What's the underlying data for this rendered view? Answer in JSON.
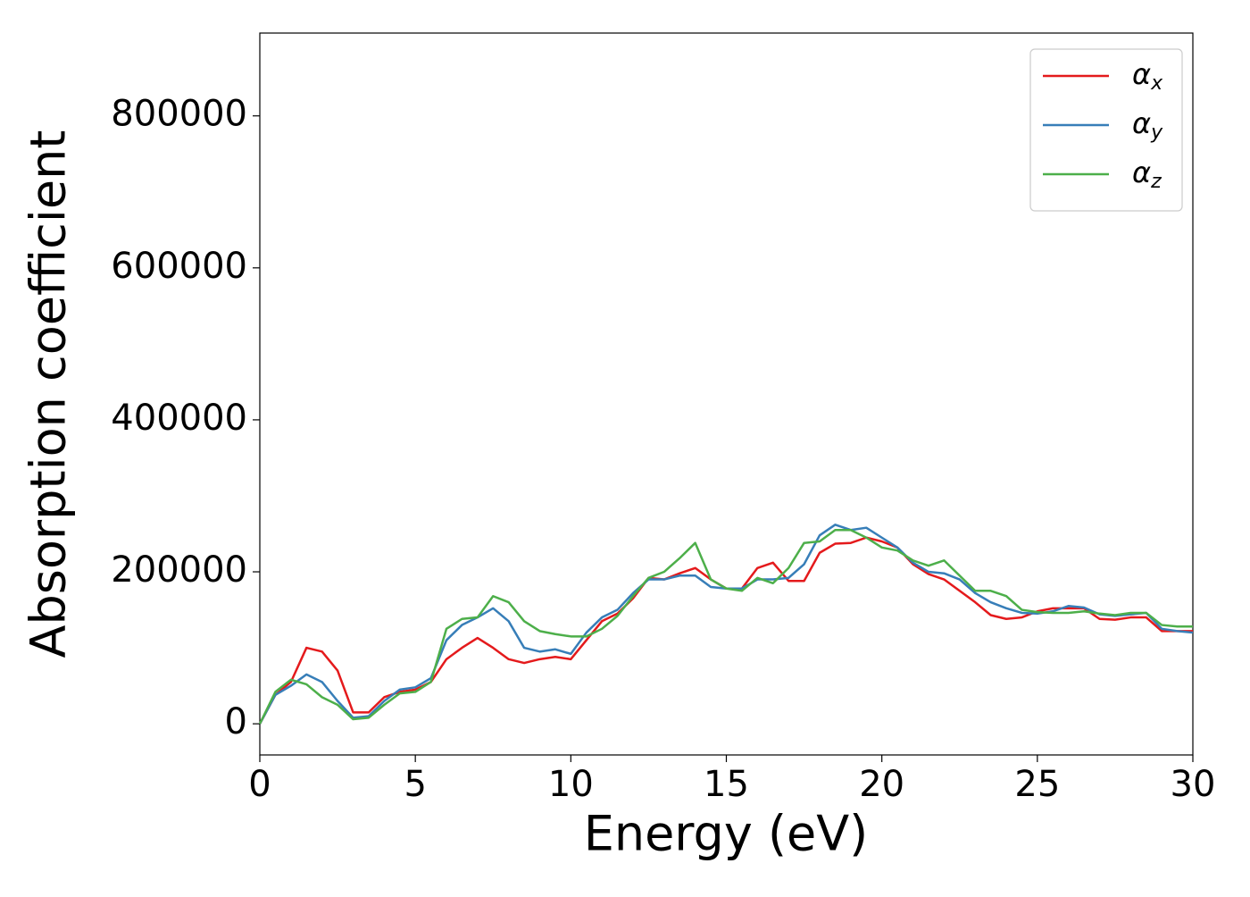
{
  "chart_data": {
    "type": "line",
    "xlabel": "Energy (eV)",
    "ylabel": "Absorption coefficient",
    "x": [
      0,
      0.5,
      1,
      1.5,
      2,
      2.5,
      3,
      3.5,
      4,
      4.5,
      5,
      5.5,
      6,
      6.5,
      7,
      7.5,
      8,
      8.5,
      9,
      9.5,
      10,
      10.5,
      11,
      11.5,
      12,
      12.5,
      13,
      13.5,
      14,
      14.5,
      15,
      15.5,
      16,
      16.5,
      17,
      17.5,
      18,
      18.5,
      19,
      19.5,
      20,
      20.5,
      21,
      21.5,
      22,
      22.5,
      23,
      23.5,
      24,
      24.5,
      25,
      25.5,
      26,
      26.5,
      27,
      27.5,
      28,
      28.5,
      29,
      29.5,
      30
    ],
    "series": [
      {
        "name": "αx",
        "color": "#e41a1c",
        "values": [
          0,
          38000,
          55000,
          100000,
          95000,
          70000,
          15000,
          15000,
          35000,
          42000,
          45000,
          55000,
          85000,
          100000,
          113000,
          100000,
          85000,
          80000,
          85000,
          88000,
          85000,
          110000,
          135000,
          145000,
          165000,
          192000,
          190000,
          198000,
          205000,
          190000,
          178000,
          178000,
          205000,
          212000,
          188000,
          188000,
          225000,
          237000,
          238000,
          245000,
          240000,
          232000,
          210000,
          197000,
          190000,
          175000,
          160000,
          143000,
          138000,
          140000,
          148000,
          152000,
          152000,
          152000,
          138000,
          137000,
          140000,
          140000,
          122000,
          122000,
          122000
        ]
      },
      {
        "name": "αy",
        "color": "#377eb8",
        "values": [
          0,
          38000,
          50000,
          65000,
          55000,
          30000,
          8000,
          10000,
          30000,
          45000,
          48000,
          60000,
          110000,
          130000,
          140000,
          152000,
          135000,
          100000,
          95000,
          98000,
          92000,
          120000,
          140000,
          150000,
          172000,
          190000,
          190000,
          195000,
          195000,
          180000,
          178000,
          178000,
          190000,
          190000,
          192000,
          210000,
          248000,
          262000,
          255000,
          258000,
          245000,
          232000,
          212000,
          200000,
          198000,
          190000,
          172000,
          160000,
          152000,
          146000,
          145000,
          148000,
          155000,
          153000,
          144000,
          142000,
          144000,
          146000,
          125000,
          122000,
          120000
        ]
      },
      {
        "name": "αz",
        "color": "#4daf4a",
        "values": [
          0,
          42000,
          58000,
          52000,
          35000,
          25000,
          6000,
          8000,
          25000,
          40000,
          42000,
          55000,
          125000,
          138000,
          140000,
          168000,
          160000,
          135000,
          122000,
          118000,
          115000,
          115000,
          125000,
          142000,
          168000,
          192000,
          200000,
          218000,
          238000,
          190000,
          178000,
          175000,
          192000,
          185000,
          205000,
          238000,
          240000,
          255000,
          255000,
          245000,
          232000,
          228000,
          215000,
          208000,
          215000,
          195000,
          175000,
          175000,
          168000,
          150000,
          147000,
          146000,
          146000,
          148000,
          145000,
          143000,
          146000,
          146000,
          130000,
          128000,
          128000
        ]
      }
    ],
    "xlim": [
      0,
      30
    ],
    "xticks": [
      0,
      5,
      10,
      15,
      20,
      25,
      30
    ],
    "ylim": [
      -41000,
      909000
    ],
    "yticks": [
      0,
      200000,
      400000,
      600000,
      800000
    ],
    "grid": false,
    "legend": "upper right"
  }
}
